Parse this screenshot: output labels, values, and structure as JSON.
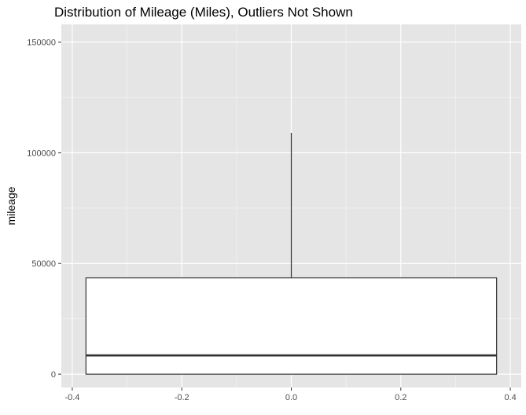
{
  "chart_data": {
    "type": "boxplot",
    "title": "Distribution of Mileage (Miles), Outliers Not Shown",
    "xlabel": "",
    "ylabel": "mileage",
    "xlim": [
      -0.42,
      0.42
    ],
    "ylim": [
      -6000,
      158000
    ],
    "x_ticks": [
      -0.4,
      -0.2,
      0.0,
      0.2,
      0.4
    ],
    "x_tick_labels": [
      "-0.4",
      "-0.2",
      "0.0",
      "0.2",
      "0.4"
    ],
    "y_ticks": [
      0,
      50000,
      100000,
      150000
    ],
    "y_tick_labels": [
      "0",
      "50000",
      "100000",
      "150000"
    ],
    "grid": true,
    "box": {
      "x_left": -0.375,
      "x_right": 0.375,
      "x_center": 0.0,
      "lower_whisker": 0,
      "q1": 0,
      "median": 8500,
      "q3": 43500,
      "upper_whisker": 109000
    },
    "colors": {
      "panel_background": "#e5e5e5",
      "grid_major": "#ffffff",
      "grid_minor": "#f2f2f2",
      "box_fill": "#ffffff",
      "box_stroke": "#333333"
    }
  }
}
